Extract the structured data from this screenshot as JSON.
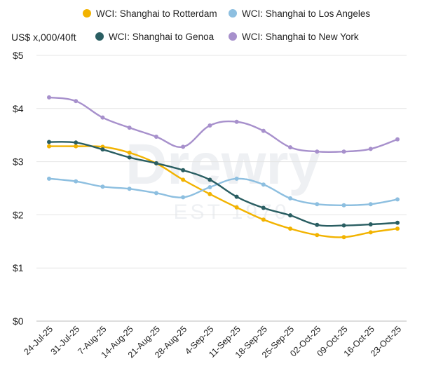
{
  "chart_data": {
    "type": "line",
    "ylabel": "US$ x,000/40ft",
    "ylim": [
      0,
      5
    ],
    "y_ticks": [
      "$0",
      "$1",
      "$2",
      "$3",
      "$4",
      "$5"
    ],
    "grid": true,
    "legend_position": "top",
    "watermark": {
      "brand": "Drewry",
      "est": "EST 1970"
    },
    "categories": [
      "24-Jul-25",
      "31-Jul-25",
      "7-Aug-25",
      "14-Aug-25",
      "21-Aug-25",
      "28-Aug-25",
      "4-Sep-25",
      "11-Sep-25",
      "18-Sep-25",
      "25-Sep-25",
      "02-Oct-25",
      "09-Oct-25",
      "16-Oct-25",
      "23-Oct-25"
    ],
    "series": [
      {
        "name": "WCI: Shanghai to Rotterdam",
        "color": "#F2B300",
        "values": [
          3.29,
          3.29,
          3.28,
          3.17,
          2.97,
          2.66,
          2.39,
          2.14,
          1.91,
          1.74,
          1.62,
          1.58,
          1.67,
          1.74
        ]
      },
      {
        "name": "WCI: Shanghai to Los Angeles",
        "color": "#8DBFE0",
        "values": [
          2.68,
          2.63,
          2.53,
          2.49,
          2.41,
          2.33,
          2.52,
          2.68,
          2.57,
          2.31,
          2.2,
          2.18,
          2.2,
          2.29
        ]
      },
      {
        "name": "WCI: Shanghai to Genoa",
        "color": "#2A5E62",
        "values": [
          3.37,
          3.36,
          3.23,
          3.08,
          2.97,
          2.84,
          2.66,
          2.34,
          2.13,
          1.99,
          1.81,
          1.8,
          1.82,
          1.85
        ]
      },
      {
        "name": "WCI: Shanghai to New York",
        "color": "#A790CC",
        "values": [
          4.21,
          4.14,
          3.83,
          3.64,
          3.47,
          3.28,
          3.68,
          3.75,
          3.58,
          3.27,
          3.19,
          3.19,
          3.24,
          3.42
        ]
      }
    ]
  }
}
